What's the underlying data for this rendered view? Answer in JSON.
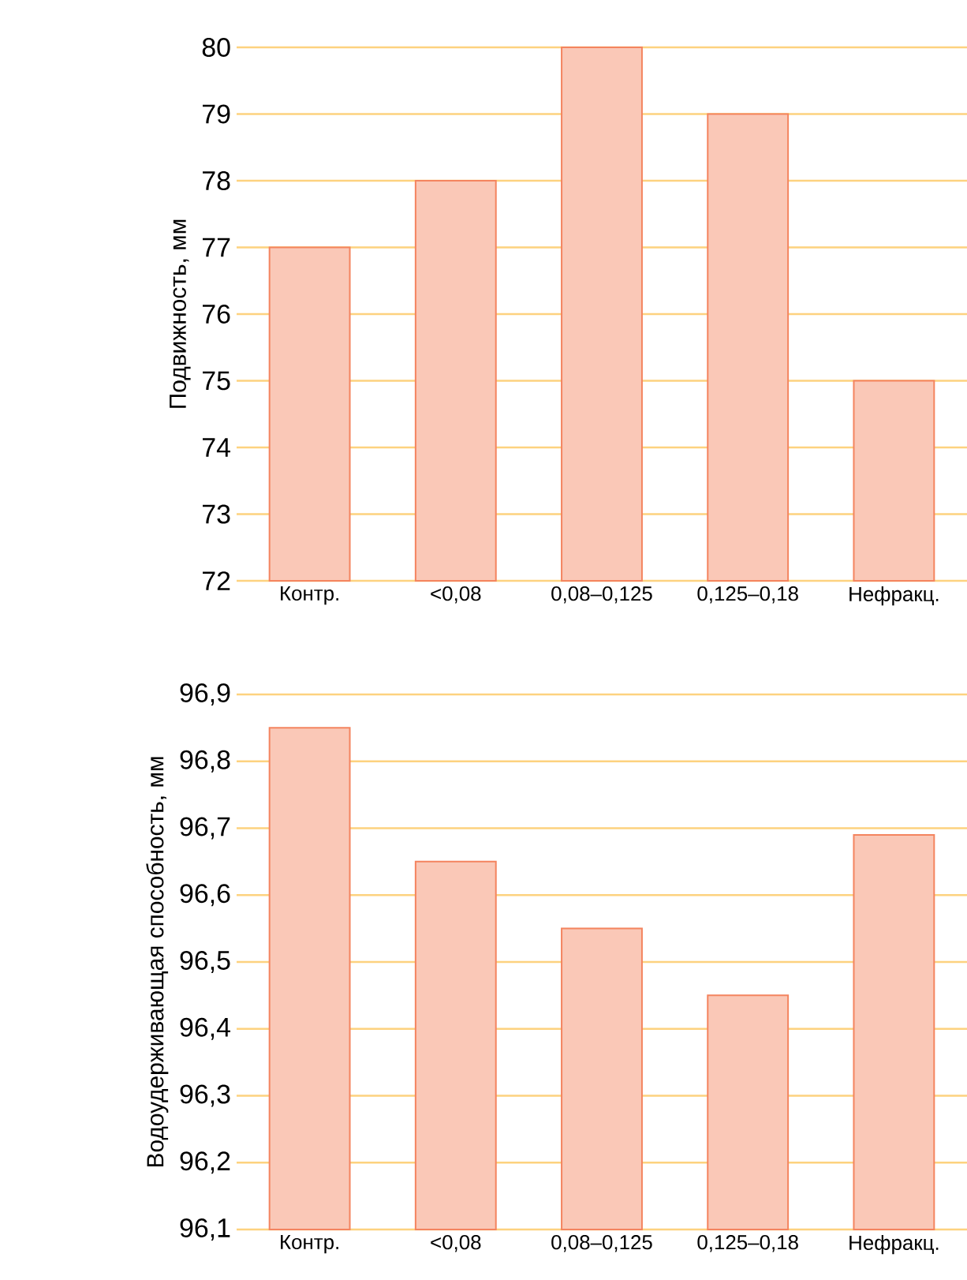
{
  "chart_data": [
    {
      "type": "bar",
      "ylabel": "Подвижность, мм",
      "categories": [
        "Контр.",
        "<0,08",
        "0,08–0,125",
        "0,125–0,18",
        "Нефракц."
      ],
      "values": [
        77,
        78,
        80,
        79,
        75
      ],
      "color": "#f4845f",
      "ylim": [
        72,
        80
      ],
      "yticks": [
        72,
        73,
        74,
        75,
        76,
        77,
        78,
        79,
        80
      ],
      "grid": "y"
    },
    {
      "type": "bar",
      "ylabel": "Водоудерживающая способность, мм",
      "categories": [
        "Контр.",
        "<0,08",
        "0,08–0,125",
        "0,125–0,18",
        "Нефракц."
      ],
      "values": [
        96.85,
        96.65,
        96.55,
        96.45,
        96.69
      ],
      "color": "#f4845f",
      "ylim": [
        96.1,
        96.9
      ],
      "yticks": [
        {
          "value": 96.1,
          "label": "96,1"
        },
        {
          "value": 96.2,
          "label": "96,2"
        },
        {
          "value": 96.3,
          "label": "96,3"
        },
        {
          "value": 96.4,
          "label": "96,4"
        },
        {
          "value": 96.5,
          "label": "96,5"
        },
        {
          "value": 96.6,
          "label": "96,6"
        },
        {
          "value": 96.7,
          "label": "96,7"
        },
        {
          "value": 96.8,
          "label": "96,8"
        },
        {
          "value": 96.9,
          "label": "96,9"
        }
      ],
      "grid": "y"
    }
  ]
}
